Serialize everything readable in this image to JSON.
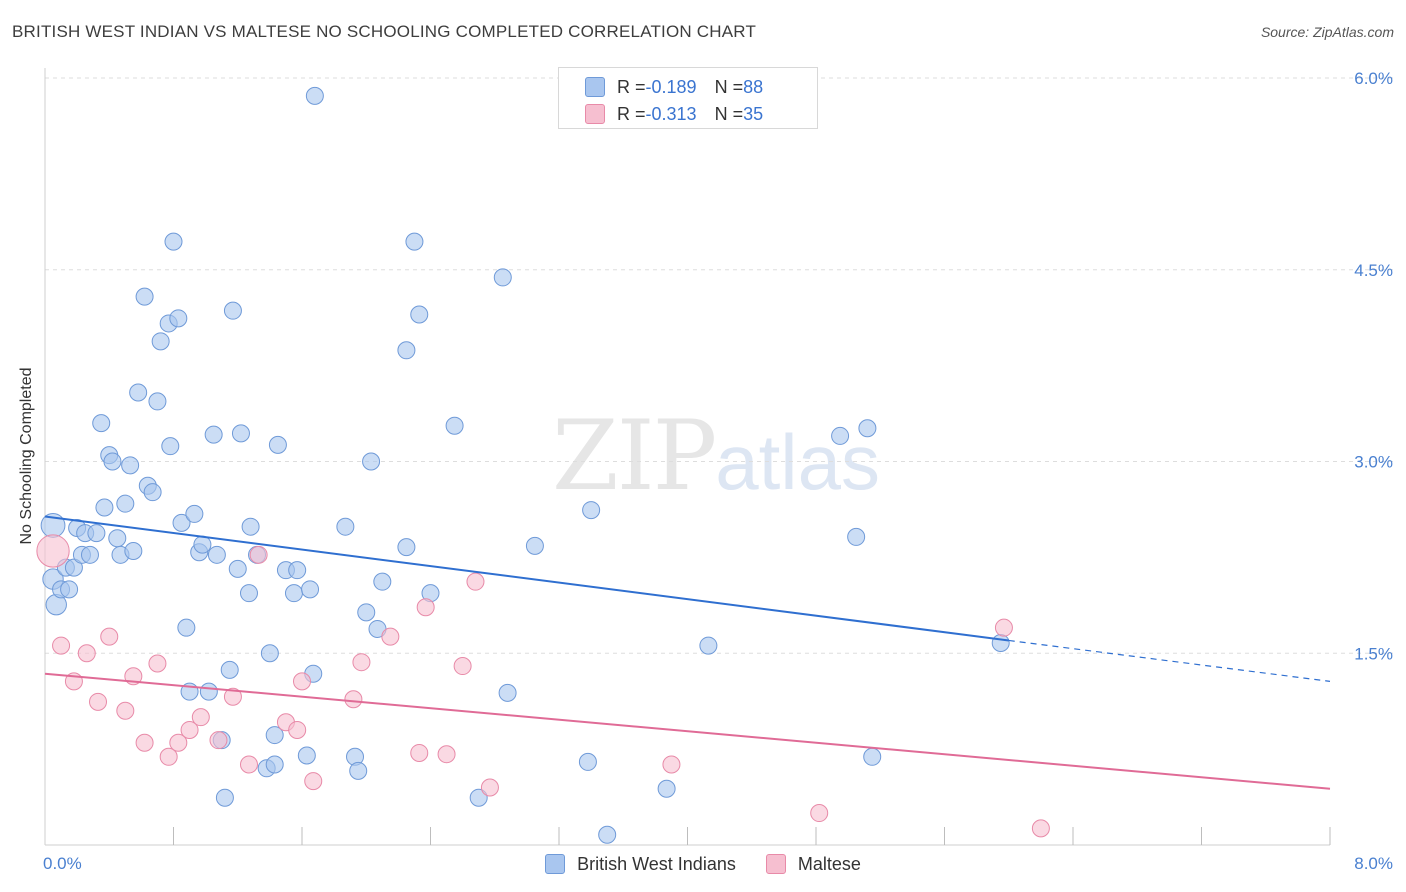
{
  "header": {
    "title": "BRITISH WEST INDIAN VS MALTESE NO SCHOOLING COMPLETED CORRELATION CHART",
    "source": "Source: ZipAtlas.com"
  },
  "watermark": {
    "zip": "ZIP",
    "atlas": "atlas"
  },
  "colors": {
    "blue_fill": "#a9c6ef",
    "blue_stroke": "#6f9ad8",
    "blue_line": "#2f6fd0",
    "pink_fill": "#f6bfd0",
    "pink_stroke": "#e88aa8",
    "pink_line": "#e06b96",
    "tick_text": "#4a80d0",
    "grid": "#dddddd"
  },
  "legend": {
    "rows": [
      {
        "r_label": "R = ",
        "r_value": "-0.189",
        "n_label": "N = ",
        "n_value": "88"
      },
      {
        "r_label": "R = ",
        "r_value": "-0.313",
        "n_label": "N = ",
        "n_value": "35"
      }
    ]
  },
  "bottom_legend": {
    "series_a": "British West Indians",
    "series_b": "Maltese"
  },
  "chart_data": {
    "type": "scatter",
    "title": "BRITISH WEST INDIAN VS MALTESE NO SCHOOLING COMPLETED CORRELATION CHART",
    "xlabel": "",
    "ylabel": "No Schooling Completed",
    "xlim": [
      0,
      8
    ],
    "ylim": [
      0,
      6.2
    ],
    "x_tick_labels": {
      "left": "0.0%",
      "right": "8.0%"
    },
    "y_ticks": [
      {
        "value": 1.5,
        "label": "1.5%"
      },
      {
        "value": 3.0,
        "label": "3.0%"
      },
      {
        "value": 4.5,
        "label": "4.5%"
      },
      {
        "value": 6.0,
        "label": "6.0%"
      }
    ],
    "x_minor_ticks": [
      0.8,
      1.6,
      2.4,
      3.2,
      4.0,
      4.8,
      5.6,
      6.4,
      7.2,
      8.0
    ],
    "series": [
      {
        "name": "British West Indians",
        "r": -0.189,
        "n": 88,
        "trend": {
          "x0": 0,
          "y0": 2.57,
          "x1": 6.0,
          "y1": 1.6,
          "dash_to_x": 8.0,
          "dash_to_y": 1.28
        },
        "points": [
          [
            0.05,
            2.5,
            1.4
          ],
          [
            0.05,
            2.08,
            1.2
          ],
          [
            0.07,
            1.88,
            1.2
          ],
          [
            0.1,
            2.0,
            1.0
          ],
          [
            0.13,
            2.17,
            1.0
          ],
          [
            0.15,
            2.0,
            1.0
          ],
          [
            0.18,
            2.17,
            1.0
          ],
          [
            0.2,
            2.48,
            1.0
          ],
          [
            0.23,
            2.27,
            1.0
          ],
          [
            0.25,
            2.44,
            1.0
          ],
          [
            0.28,
            2.27,
            1.0
          ],
          [
            0.32,
            2.44,
            1.0
          ],
          [
            0.35,
            3.3,
            1.0
          ],
          [
            0.37,
            2.64,
            1.0
          ],
          [
            0.4,
            3.05,
            1.0
          ],
          [
            0.42,
            3.0,
            1.0
          ],
          [
            0.45,
            2.4,
            1.0
          ],
          [
            0.47,
            2.27,
            1.0
          ],
          [
            0.5,
            2.67,
            1.0
          ],
          [
            0.53,
            2.97,
            1.0
          ],
          [
            0.55,
            2.3,
            1.0
          ],
          [
            0.58,
            3.54,
            1.0
          ],
          [
            0.62,
            4.29,
            1.0
          ],
          [
            0.64,
            2.81,
            1.0
          ],
          [
            0.67,
            2.76,
            1.0
          ],
          [
            0.7,
            3.47,
            1.0
          ],
          [
            0.72,
            3.94,
            1.0
          ],
          [
            0.77,
            4.08,
            1.0
          ],
          [
            0.78,
            3.12,
            1.0
          ],
          [
            0.8,
            4.72,
            1.0
          ],
          [
            0.83,
            4.12,
            1.0
          ],
          [
            0.85,
            2.52,
            1.0
          ],
          [
            0.88,
            1.7,
            1.0
          ],
          [
            0.9,
            1.2,
            1.0
          ],
          [
            0.93,
            2.59,
            1.0
          ],
          [
            0.96,
            2.29,
            1.0
          ],
          [
            0.98,
            2.35,
            1.0
          ],
          [
            1.02,
            1.2,
            1.0
          ],
          [
            1.05,
            3.21,
            1.0
          ],
          [
            1.07,
            2.27,
            1.0
          ],
          [
            1.1,
            0.82,
            1.0
          ],
          [
            1.12,
            0.37,
            1.0
          ],
          [
            1.15,
            1.37,
            1.0
          ],
          [
            1.17,
            4.18,
            1.0
          ],
          [
            1.2,
            2.16,
            1.0
          ],
          [
            1.22,
            3.22,
            1.0
          ],
          [
            1.27,
            1.97,
            1.0
          ],
          [
            1.28,
            2.49,
            1.0
          ],
          [
            1.32,
            2.27,
            1.0
          ],
          [
            1.38,
            0.6,
            1.0
          ],
          [
            1.4,
            1.5,
            1.0
          ],
          [
            1.43,
            0.86,
            1.0
          ],
          [
            1.43,
            0.63,
            1.0
          ],
          [
            1.45,
            3.13,
            1.0
          ],
          [
            1.5,
            2.15,
            1.0
          ],
          [
            1.55,
            1.97,
            1.0
          ],
          [
            1.57,
            2.15,
            1.0
          ],
          [
            1.63,
            0.7,
            1.0
          ],
          [
            1.65,
            2.0,
            1.0
          ],
          [
            1.67,
            1.34,
            1.0
          ],
          [
            1.68,
            5.86,
            1.0
          ],
          [
            1.87,
            2.49,
            1.0
          ],
          [
            1.93,
            0.69,
            1.0
          ],
          [
            1.95,
            0.58,
            1.0
          ],
          [
            2.0,
            1.82,
            1.0
          ],
          [
            2.03,
            3.0,
            1.0
          ],
          [
            2.07,
            1.69,
            1.0
          ],
          [
            2.1,
            2.06,
            1.0
          ],
          [
            2.25,
            2.33,
            1.0
          ],
          [
            2.25,
            3.87,
            1.0
          ],
          [
            2.3,
            4.72,
            1.0
          ],
          [
            2.33,
            4.15,
            1.0
          ],
          [
            2.4,
            1.97,
            1.0
          ],
          [
            2.55,
            3.28,
            1.0
          ],
          [
            2.7,
            0.37,
            1.0
          ],
          [
            2.85,
            4.44,
            1.0
          ],
          [
            2.88,
            1.19,
            1.0
          ],
          [
            3.05,
            2.34,
            1.0
          ],
          [
            3.38,
            0.65,
            1.0
          ],
          [
            3.4,
            2.62,
            1.0
          ],
          [
            3.5,
            0.08,
            1.0
          ],
          [
            3.87,
            0.44,
            1.0
          ],
          [
            4.13,
            1.56,
            1.0
          ],
          [
            4.95,
            3.2,
            1.0
          ],
          [
            5.05,
            2.41,
            1.0
          ],
          [
            5.12,
            3.26,
            1.0
          ],
          [
            5.15,
            0.69,
            1.0
          ],
          [
            5.95,
            1.58,
            1.0
          ]
        ]
      },
      {
        "name": "Maltese",
        "r": -0.313,
        "n": 35,
        "trend": {
          "x0": 0,
          "y0": 1.34,
          "x1": 8.0,
          "y1": 0.44
        },
        "points": [
          [
            0.05,
            2.3,
            1.9
          ],
          [
            0.1,
            1.56,
            1.0
          ],
          [
            0.18,
            1.28,
            1.0
          ],
          [
            0.26,
            1.5,
            1.0
          ],
          [
            0.33,
            1.12,
            1.0
          ],
          [
            0.4,
            1.63,
            1.0
          ],
          [
            0.5,
            1.05,
            1.0
          ],
          [
            0.55,
            1.32,
            1.0
          ],
          [
            0.62,
            0.8,
            1.0
          ],
          [
            0.7,
            1.42,
            1.0
          ],
          [
            0.77,
            0.69,
            1.0
          ],
          [
            0.83,
            0.8,
            1.0
          ],
          [
            0.9,
            0.9,
            1.0
          ],
          [
            0.97,
            1.0,
            1.0
          ],
          [
            1.08,
            0.82,
            1.0
          ],
          [
            1.17,
            1.16,
            1.0
          ],
          [
            1.27,
            0.63,
            1.0
          ],
          [
            1.33,
            2.27,
            1.0
          ],
          [
            1.5,
            0.96,
            1.0
          ],
          [
            1.57,
            0.9,
            1.0
          ],
          [
            1.6,
            1.28,
            1.0
          ],
          [
            1.67,
            0.5,
            1.0
          ],
          [
            1.92,
            1.14,
            1.0
          ],
          [
            1.97,
            1.43,
            1.0
          ],
          [
            2.15,
            1.63,
            1.0
          ],
          [
            2.33,
            0.72,
            1.0
          ],
          [
            2.37,
            1.86,
            1.0
          ],
          [
            2.5,
            0.71,
            1.0
          ],
          [
            2.6,
            1.4,
            1.0
          ],
          [
            2.68,
            2.06,
            1.0
          ],
          [
            2.77,
            0.45,
            1.0
          ],
          [
            3.9,
            0.63,
            1.0
          ],
          [
            4.82,
            0.25,
            1.0
          ],
          [
            5.97,
            1.7,
            1.0
          ],
          [
            6.2,
            0.13,
            1.0
          ]
        ]
      }
    ]
  }
}
